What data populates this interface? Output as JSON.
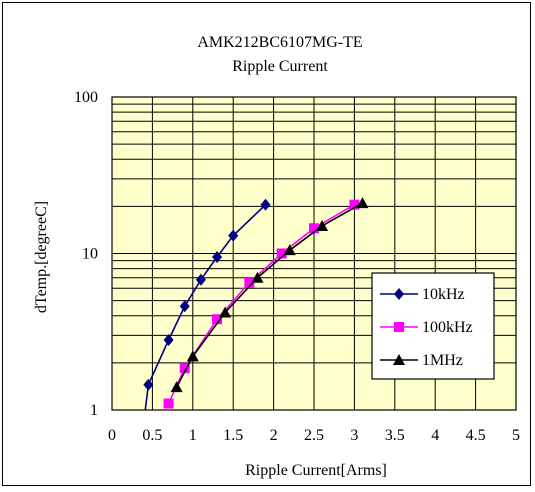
{
  "chart_data": {
    "type": "line",
    "title": "AMK212BC6107MG-TE",
    "subtitle": "Ripple Current",
    "xlabel": "Ripple Current[Arms]",
    "ylabel": "dTemp.[degreeC]",
    "xlim": [
      0,
      5
    ],
    "ylim": [
      1,
      100
    ],
    "y_scale": "log",
    "grid": true,
    "legend_position": "right",
    "x_ticks": [
      "0",
      "0.5",
      "1",
      "1.5",
      "2",
      "2.5",
      "3",
      "3.5",
      "4",
      "4.5",
      "5"
    ],
    "y_ticks": [
      "1",
      "10",
      "100"
    ],
    "plot_background": "#ffffcc",
    "series": [
      {
        "name": "10kHz",
        "color": "#000080",
        "marker": "diamond",
        "x": [
          0.35,
          0.45,
          0.7,
          0.9,
          1.1,
          1.3,
          1.5,
          1.9
        ],
        "y": [
          0.55,
          1.45,
          2.8,
          4.6,
          6.8,
          9.5,
          13,
          20.5
        ]
      },
      {
        "name": "100kHz",
        "color": "#ff00ff",
        "marker": "square",
        "x": [
          0.7,
          0.9,
          1.3,
          1.7,
          2.1,
          2.5,
          3.0
        ],
        "y": [
          1.1,
          1.85,
          3.8,
          6.5,
          10,
          14.5,
          20.5
        ]
      },
      {
        "name": "1MHz",
        "color": "#000000",
        "marker": "triangle",
        "x": [
          0.8,
          1.0,
          1.4,
          1.8,
          2.2,
          2.6,
          3.1
        ],
        "y": [
          1.4,
          2.2,
          4.2,
          7,
          10.5,
          15,
          21
        ]
      }
    ]
  }
}
